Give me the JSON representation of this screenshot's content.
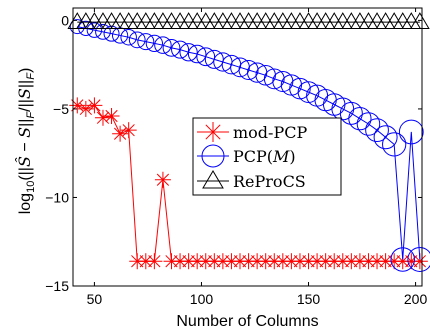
{
  "chart_data": {
    "type": "line",
    "title": "",
    "xlabel": "Number of Columns",
    "ylabel_parts": [
      "log",
      "10",
      "(||",
      "Ŝ",
      " − ",
      "S",
      "||",
      "F",
      "/||",
      "S",
      "||",
      "F",
      ")"
    ],
    "xlim": [
      40,
      203
    ],
    "ylim": [
      -15,
      0.7
    ],
    "xticks": [
      50,
      100,
      150,
      200
    ],
    "yticks": [
      0,
      -5,
      -10,
      -15
    ],
    "grid": false,
    "legend_position": "center-right",
    "series": [
      {
        "name": "mod-PCP",
        "color": "#ff0000",
        "marker": "asterisk",
        "points": [
          [
            42,
            -4.8
          ],
          [
            46,
            -5.0
          ],
          [
            50,
            -4.8
          ],
          [
            54,
            -5.5
          ],
          [
            58,
            -5.4
          ],
          [
            62,
            -6.4
          ],
          [
            66,
            -6.2
          ],
          [
            70,
            -13.6
          ],
          [
            74,
            -13.6
          ],
          [
            78,
            -13.6
          ],
          [
            82,
            -9.0
          ],
          [
            86,
            -13.6
          ],
          [
            90,
            -13.6
          ],
          [
            94,
            -13.6
          ],
          [
            98,
            -13.6
          ],
          [
            102,
            -13.6
          ],
          [
            106,
            -13.6
          ],
          [
            110,
            -13.6
          ],
          [
            114,
            -13.6
          ],
          [
            118,
            -13.6
          ],
          [
            122,
            -13.6
          ],
          [
            126,
            -13.6
          ],
          [
            130,
            -13.6
          ],
          [
            134,
            -13.6
          ],
          [
            138,
            -13.6
          ],
          [
            142,
            -13.6
          ],
          [
            146,
            -13.6
          ],
          [
            150,
            -13.6
          ],
          [
            154,
            -13.6
          ],
          [
            158,
            -13.6
          ],
          [
            162,
            -13.6
          ],
          [
            166,
            -13.6
          ],
          [
            170,
            -13.6
          ],
          [
            174,
            -13.6
          ],
          [
            178,
            -13.6
          ],
          [
            182,
            -13.6
          ],
          [
            186,
            -13.6
          ],
          [
            190,
            -13.6
          ],
          [
            194,
            -13.6
          ],
          [
            198,
            -13.6
          ],
          [
            202,
            -13.6
          ]
        ]
      },
      {
        "name_parts": [
          "PCP(",
          "M",
          ")"
        ],
        "color": "#0000ff",
        "marker": "circle",
        "points": [
          [
            42,
            -0.35
          ],
          [
            46,
            -0.45
          ],
          [
            50,
            -0.55
          ],
          [
            54,
            -0.65
          ],
          [
            58,
            -0.75
          ],
          [
            62,
            -0.85
          ],
          [
            66,
            -0.95
          ],
          [
            70,
            -1.1
          ],
          [
            74,
            -1.2
          ],
          [
            78,
            -1.3
          ],
          [
            82,
            -1.4
          ],
          [
            86,
            -1.55
          ],
          [
            90,
            -1.65
          ],
          [
            94,
            -1.8
          ],
          [
            98,
            -1.9
          ],
          [
            102,
            -2.05
          ],
          [
            106,
            -2.2
          ],
          [
            110,
            -2.35
          ],
          [
            114,
            -2.5
          ],
          [
            118,
            -2.65
          ],
          [
            122,
            -2.8
          ],
          [
            126,
            -2.95
          ],
          [
            130,
            -3.1
          ],
          [
            134,
            -3.3
          ],
          [
            138,
            -3.45
          ],
          [
            142,
            -3.65
          ],
          [
            146,
            -3.85
          ],
          [
            150,
            -4.05
          ],
          [
            154,
            -4.25
          ],
          [
            158,
            -4.5
          ],
          [
            162,
            -4.75
          ],
          [
            166,
            -5.0
          ],
          [
            170,
            -5.25
          ],
          [
            174,
            -5.55
          ],
          [
            178,
            -5.85
          ],
          [
            182,
            -6.2
          ],
          [
            186,
            -6.6
          ],
          [
            190,
            -7.0
          ],
          [
            194,
            -13.5
          ],
          [
            198,
            -6.3
          ],
          [
            202,
            -13.5
          ]
        ]
      },
      {
        "name": "ReProCS",
        "color": "#000000",
        "marker": "triangle",
        "points": [
          [
            42,
            -0.1
          ],
          [
            46,
            -0.1
          ],
          [
            50,
            -0.1
          ],
          [
            54,
            -0.1
          ],
          [
            58,
            -0.1
          ],
          [
            62,
            -0.1
          ],
          [
            66,
            -0.1
          ],
          [
            70,
            -0.1
          ],
          [
            74,
            -0.1
          ],
          [
            78,
            -0.1
          ],
          [
            82,
            -0.1
          ],
          [
            86,
            -0.1
          ],
          [
            90,
            -0.1
          ],
          [
            94,
            -0.1
          ],
          [
            98,
            -0.1
          ],
          [
            102,
            -0.1
          ],
          [
            106,
            -0.1
          ],
          [
            110,
            -0.1
          ],
          [
            114,
            -0.1
          ],
          [
            118,
            -0.1
          ],
          [
            122,
            -0.1
          ],
          [
            126,
            -0.1
          ],
          [
            130,
            -0.1
          ],
          [
            134,
            -0.1
          ],
          [
            138,
            -0.1
          ],
          [
            142,
            -0.1
          ],
          [
            146,
            -0.1
          ],
          [
            150,
            -0.1
          ],
          [
            154,
            -0.1
          ],
          [
            158,
            -0.1
          ],
          [
            162,
            -0.1
          ],
          [
            166,
            -0.1
          ],
          [
            170,
            -0.1
          ],
          [
            174,
            -0.1
          ],
          [
            178,
            -0.1
          ],
          [
            182,
            -0.1
          ],
          [
            186,
            -0.1
          ],
          [
            190,
            -0.1
          ],
          [
            194,
            -0.1
          ],
          [
            198,
            -0.1
          ],
          [
            202,
            -0.1
          ]
        ]
      }
    ]
  }
}
